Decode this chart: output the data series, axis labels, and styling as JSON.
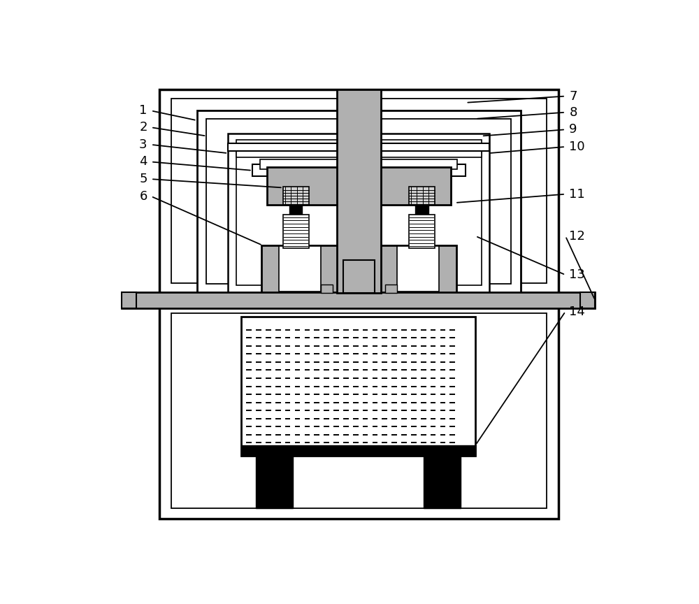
{
  "bg": "#ffffff",
  "black": "#000000",
  "gray": "#b0b0b0",
  "lgray": "#d0d0d0",
  "white": "#ffffff",
  "lw_outer": 2.5,
  "lw_mid": 1.8,
  "lw_thin": 1.2,
  "lw_ann": 1.3
}
